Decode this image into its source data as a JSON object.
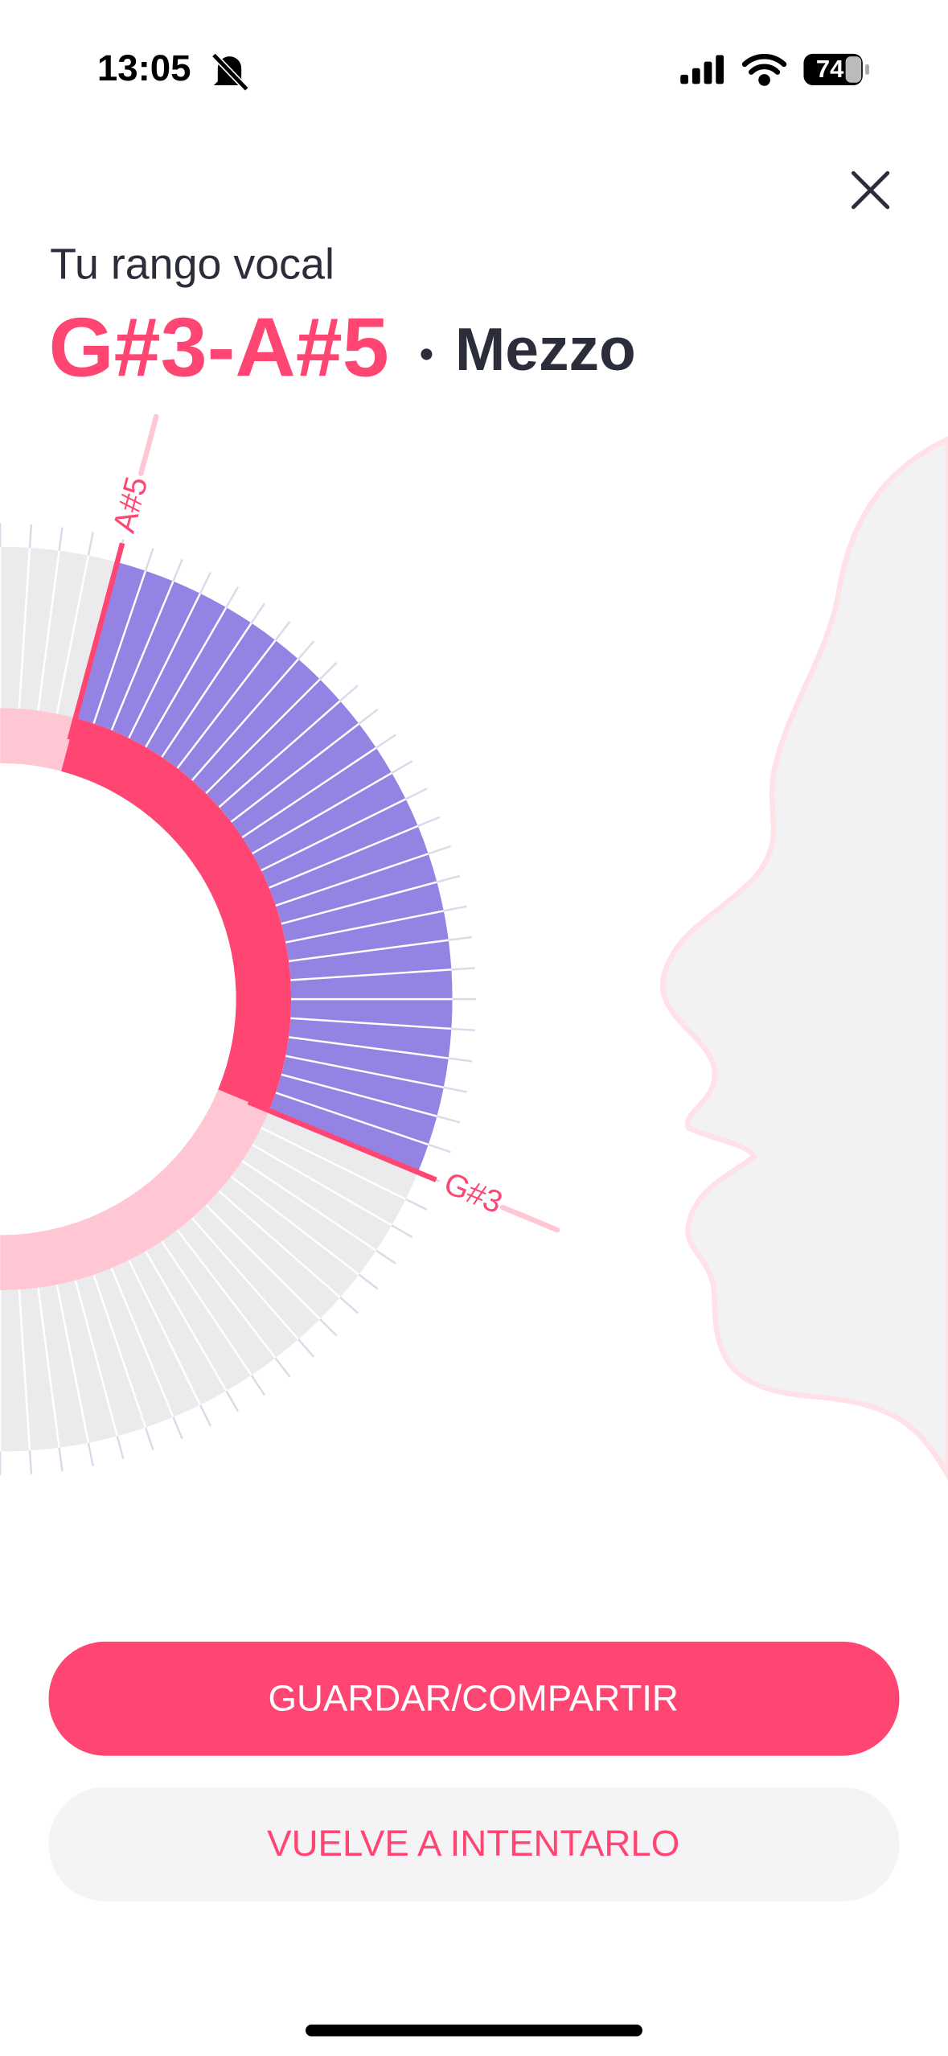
{
  "status_bar": {
    "time": "13:05",
    "battery": "74"
  },
  "header": {
    "subtitle": "Tu rango vocal",
    "range": "G#3-A#5",
    "separator": "•",
    "voice_type": "Mezzo"
  },
  "wheel": {
    "high_note": "A#5",
    "low_note": "G#3"
  },
  "buttons": {
    "primary": "GUARDAR/COMPARTIR",
    "secondary": "VUELVE A INTENTARLO"
  }
}
